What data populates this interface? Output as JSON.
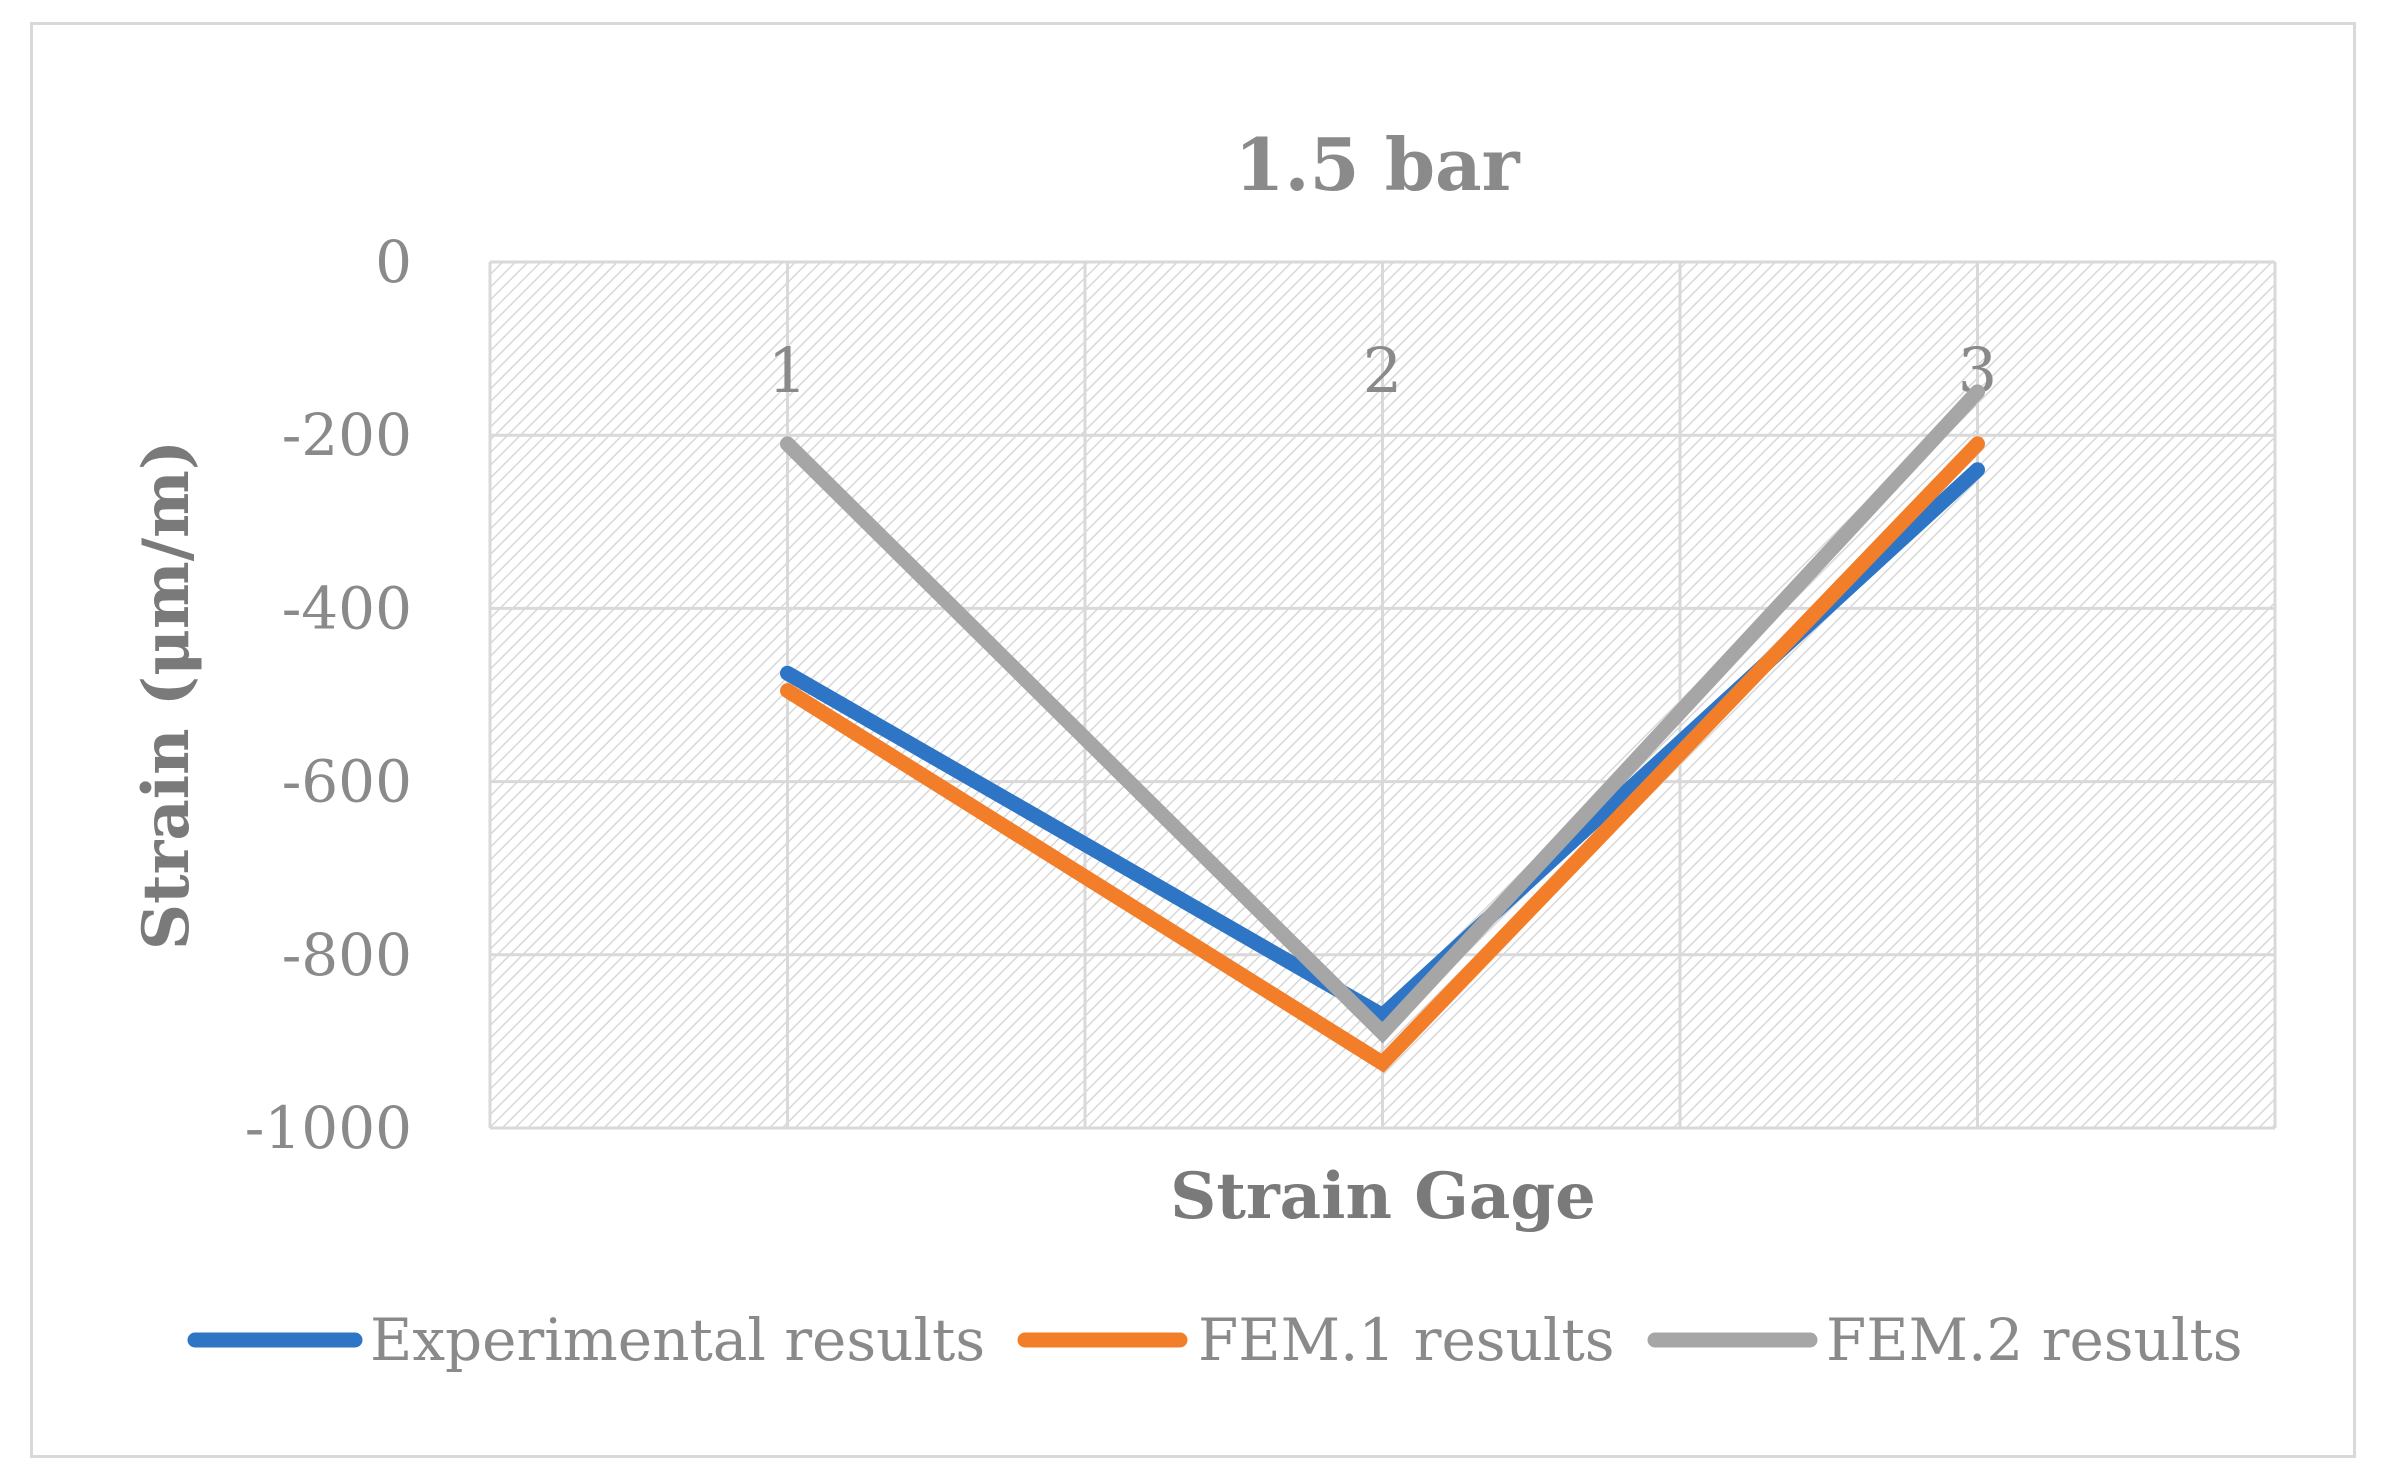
{
  "chart_data": {
    "type": "line",
    "title": "1.5 bar",
    "xlabel": "Strain Gage",
    "ylabel": "Strain (μm/m)",
    "categories": [
      "1",
      "2",
      "3"
    ],
    "y_ticks": [
      "0",
      "-200",
      "-400",
      "-600",
      "-800",
      "-1000"
    ],
    "ylim": [
      -1000,
      0
    ],
    "grid": true,
    "legend_position": "bottom",
    "series": [
      {
        "name": "Experimental results",
        "color": "#2e75c6",
        "values": [
          -475,
          -870,
          -240
        ]
      },
      {
        "name": "FEM.1 results",
        "color": "#f37e2a",
        "values": [
          -495,
          -925,
          -210
        ]
      },
      {
        "name": "FEM.2 results",
        "color": "#a6a6a6",
        "values": [
          -210,
          -890,
          -150
        ]
      }
    ]
  }
}
